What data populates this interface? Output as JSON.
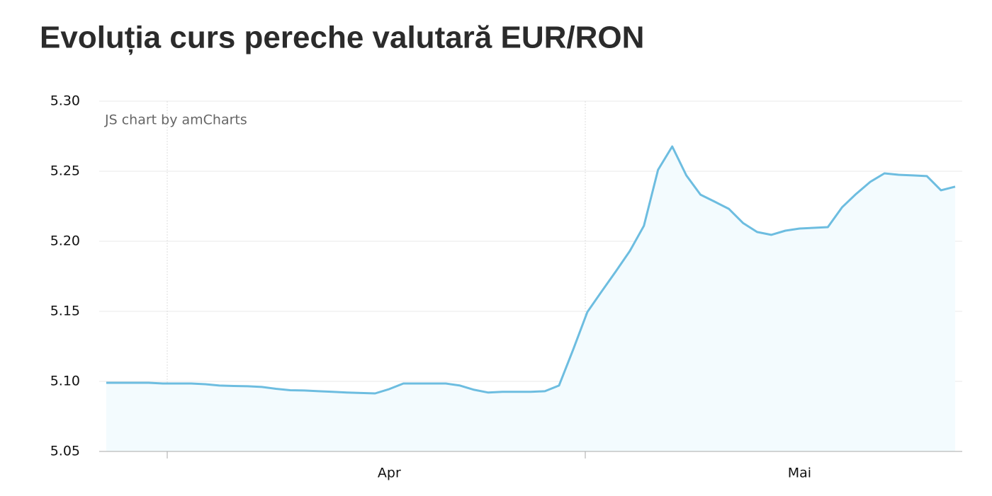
{
  "chart_data": {
    "type": "area",
    "title": "Evoluția curs pereche valutară EUR/RON",
    "credit": "JS chart by amCharts",
    "categories": [
      null,
      null,
      null,
      null,
      null,
      null,
      null,
      null,
      null,
      null,
      null,
      null,
      null,
      null,
      null,
      null,
      null,
      null,
      null,
      null,
      "Apr",
      null,
      null,
      null,
      null,
      null,
      null,
      null,
      null,
      null,
      null,
      null,
      null,
      null,
      null,
      null,
      null,
      null,
      null,
      null,
      null,
      null,
      null,
      null,
      null,
      null,
      null,
      null,
      null,
      "Mai",
      null,
      null,
      null,
      null,
      null,
      null,
      null,
      null,
      null,
      null,
      null
    ],
    "values": [
      5.099,
      5.099,
      5.099,
      5.099,
      5.0985,
      5.0985,
      5.0985,
      5.098,
      5.097,
      5.0967,
      5.0965,
      5.096,
      5.0947,
      5.0937,
      5.0935,
      5.093,
      5.0925,
      5.092,
      5.0917,
      5.0914,
      5.0945,
      5.0985,
      5.0985,
      5.0985,
      5.0985,
      5.097,
      5.094,
      5.092,
      5.0925,
      5.0925,
      5.0925,
      5.093,
      5.097,
      5.1227,
      5.1495,
      5.164,
      5.1783,
      5.193,
      5.211,
      5.251,
      5.2677,
      5.247,
      5.2333,
      5.2283,
      5.2232,
      5.2131,
      5.2066,
      5.2046,
      5.2076,
      5.2091,
      5.2096,
      5.2101,
      5.2242,
      5.2338,
      5.2424,
      5.2485,
      5.2475,
      5.247,
      5.2465,
      5.2364,
      5.239
    ],
    "color": "#6dbde0",
    "fill_color": "#f3fbfe",
    "ylim": [
      5.05,
      5.3
    ],
    "yticks": [
      5.05,
      {
        "value": 5.1,
        "label": "5.10"
      },
      5.15,
      {
        "value": 5.2,
        "label": "5.20"
      },
      5.25,
      {
        "value": 5.3,
        "label": "5.30"
      }
    ],
    "grid": true
  }
}
